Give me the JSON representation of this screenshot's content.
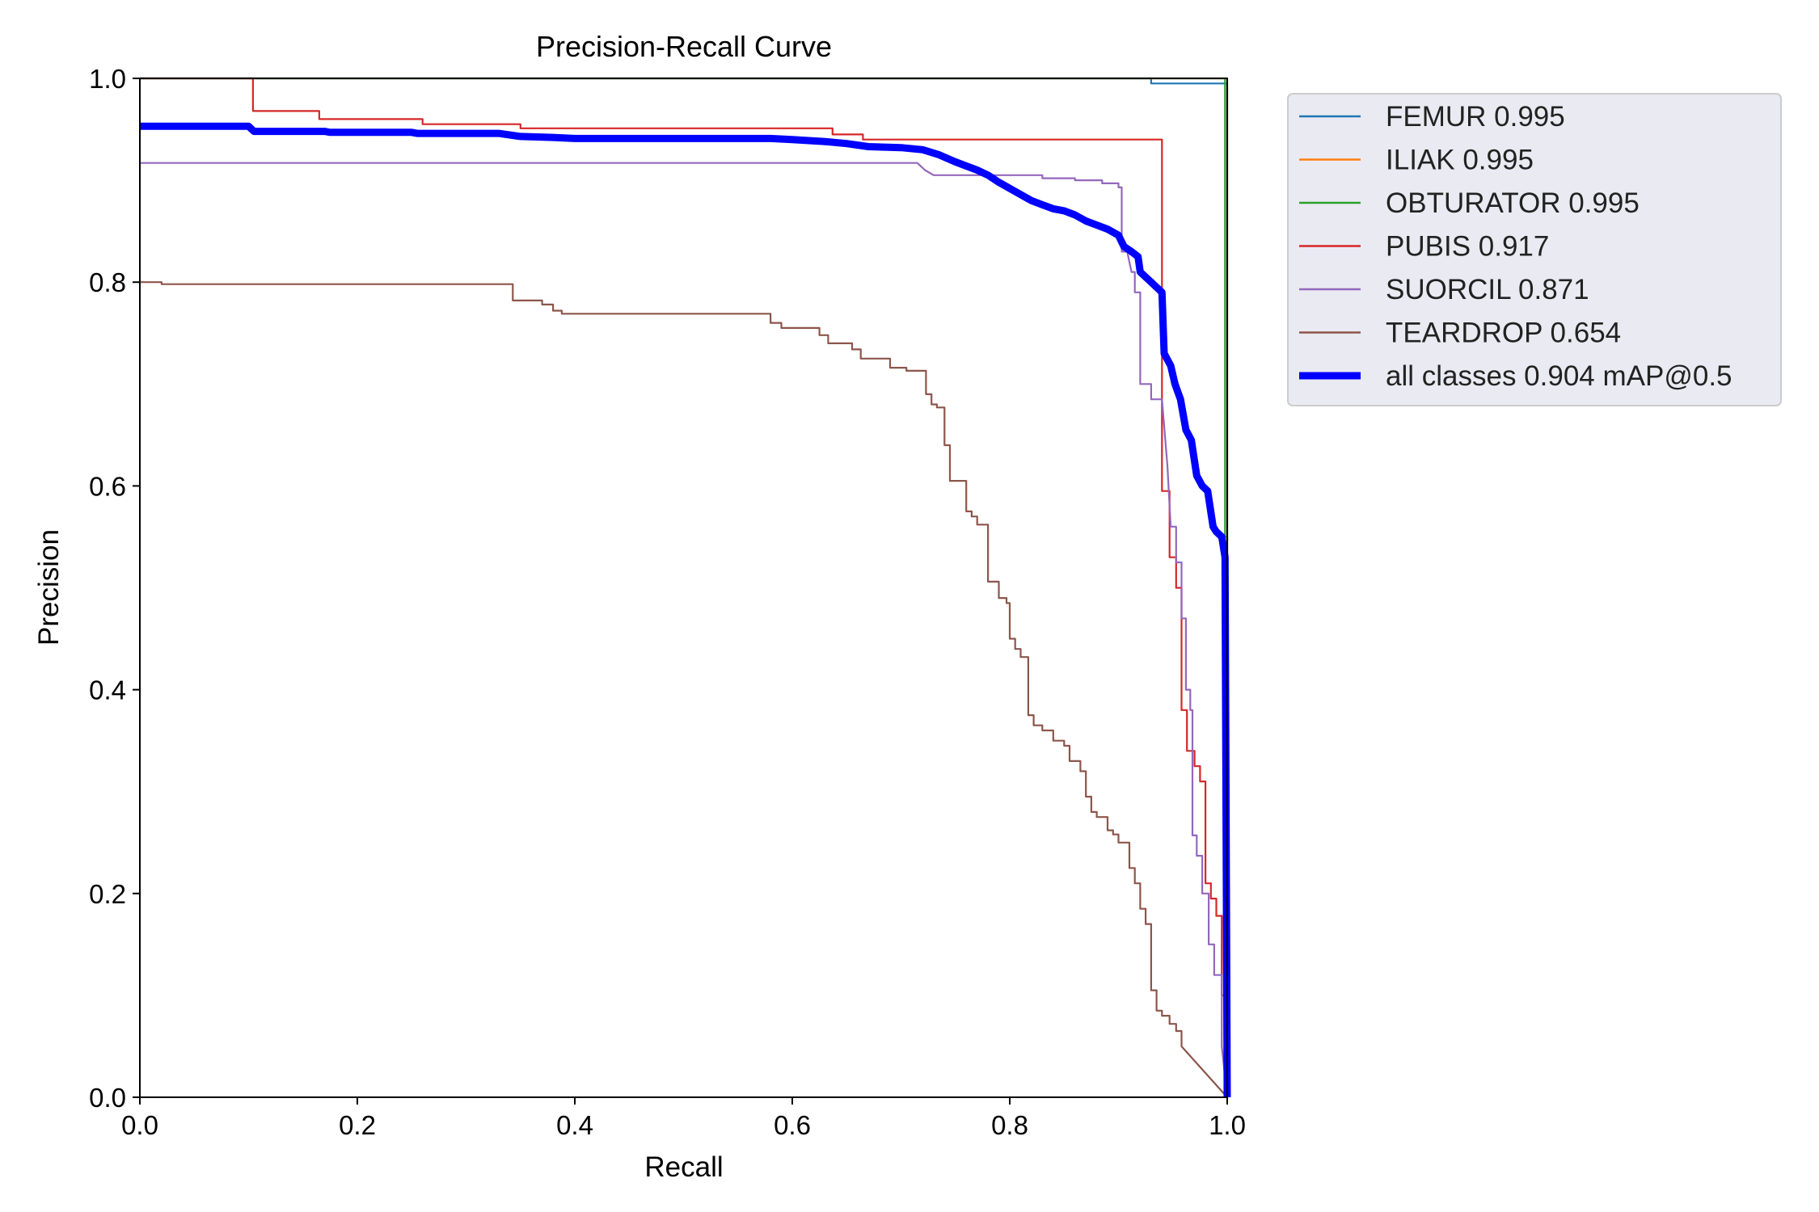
{
  "chart_data": {
    "type": "line",
    "title": "Precision-Recall Curve",
    "xlabel": "Recall",
    "ylabel": "Precision",
    "xlim": [
      0,
      1
    ],
    "ylim": [
      0,
      1
    ],
    "x_ticks": [
      "0.0",
      "0.2",
      "0.4",
      "0.6",
      "0.8",
      "1.0"
    ],
    "y_ticks": [
      "0.0",
      "0.2",
      "0.4",
      "0.6",
      "0.8",
      "1.0"
    ],
    "grid": false,
    "legend_position": "outside-top-right",
    "series": [
      {
        "name": "FEMUR 0.995",
        "color": "#1f77b4",
        "width": "thin",
        "points": [
          [
            0.0,
            1.0
          ],
          [
            0.93,
            1.0
          ],
          [
            0.93,
            0.995
          ],
          [
            1.0,
            0.995
          ],
          [
            1.0,
            0.0
          ]
        ]
      },
      {
        "name": "ILIAK 0.995",
        "color": "#ff7f0e",
        "width": "thin",
        "points": [
          [
            0.0,
            1.0
          ],
          [
            0.995,
            1.0
          ],
          [
            1.0,
            1.0
          ],
          [
            1.0,
            0.0
          ]
        ]
      },
      {
        "name": "OBTURATOR 0.995",
        "color": "#2ca02c",
        "width": "thin",
        "points": [
          [
            0.0,
            1.0
          ],
          [
            0.998,
            1.0
          ],
          [
            0.998,
            0.55
          ],
          [
            1.0,
            0.55
          ],
          [
            1.0,
            0.0
          ]
        ]
      },
      {
        "name": "PUBIS 0.917",
        "color": "#d62728",
        "width": "thin",
        "points": [
          [
            0.0,
            1.0
          ],
          [
            0.104,
            1.0
          ],
          [
            0.104,
            0.968
          ],
          [
            0.165,
            0.968
          ],
          [
            0.165,
            0.96
          ],
          [
            0.26,
            0.96
          ],
          [
            0.26,
            0.955
          ],
          [
            0.35,
            0.955
          ],
          [
            0.35,
            0.951
          ],
          [
            0.637,
            0.951
          ],
          [
            0.637,
            0.945
          ],
          [
            0.665,
            0.945
          ],
          [
            0.665,
            0.94
          ],
          [
            0.94,
            0.94
          ],
          [
            0.94,
            0.595
          ],
          [
            0.947,
            0.595
          ],
          [
            0.947,
            0.53
          ],
          [
            0.953,
            0.53
          ],
          [
            0.953,
            0.5
          ],
          [
            0.958,
            0.5
          ],
          [
            0.958,
            0.38
          ],
          [
            0.963,
            0.38
          ],
          [
            0.963,
            0.34
          ],
          [
            0.97,
            0.34
          ],
          [
            0.97,
            0.325
          ],
          [
            0.975,
            0.325
          ],
          [
            0.975,
            0.31
          ],
          [
            0.98,
            0.31
          ],
          [
            0.98,
            0.21
          ],
          [
            0.985,
            0.21
          ],
          [
            0.985,
            0.195
          ],
          [
            0.99,
            0.195
          ],
          [
            0.99,
            0.178
          ],
          [
            0.995,
            0.178
          ],
          [
            0.995,
            0.1
          ],
          [
            1.0,
            0.1
          ],
          [
            1.0,
            0.0
          ]
        ]
      },
      {
        "name": "SUORCIL 0.871",
        "color": "#9467bd",
        "width": "thin",
        "points": [
          [
            0.0,
            0.917
          ],
          [
            0.715,
            0.917
          ],
          [
            0.722,
            0.91
          ],
          [
            0.73,
            0.905
          ],
          [
            0.79,
            0.905
          ],
          [
            0.83,
            0.905
          ],
          [
            0.83,
            0.902
          ],
          [
            0.86,
            0.902
          ],
          [
            0.86,
            0.9
          ],
          [
            0.885,
            0.9
          ],
          [
            0.885,
            0.897
          ],
          [
            0.9,
            0.897
          ],
          [
            0.9,
            0.893
          ],
          [
            0.903,
            0.893
          ],
          [
            0.903,
            0.83
          ],
          [
            0.908,
            0.83
          ],
          [
            0.912,
            0.81
          ],
          [
            0.915,
            0.81
          ],
          [
            0.915,
            0.79
          ],
          [
            0.92,
            0.79
          ],
          [
            0.92,
            0.7
          ],
          [
            0.93,
            0.7
          ],
          [
            0.93,
            0.685
          ],
          [
            0.94,
            0.685
          ],
          [
            0.945,
            0.62
          ],
          [
            0.948,
            0.56
          ],
          [
            0.953,
            0.56
          ],
          [
            0.953,
            0.525
          ],
          [
            0.958,
            0.525
          ],
          [
            0.958,
            0.47
          ],
          [
            0.962,
            0.47
          ],
          [
            0.962,
            0.4
          ],
          [
            0.966,
            0.4
          ],
          [
            0.966,
            0.38
          ],
          [
            0.968,
            0.38
          ],
          [
            0.968,
            0.257
          ],
          [
            0.972,
            0.257
          ],
          [
            0.972,
            0.237
          ],
          [
            0.977,
            0.237
          ],
          [
            0.977,
            0.2
          ],
          [
            0.983,
            0.2
          ],
          [
            0.983,
            0.15
          ],
          [
            0.988,
            0.15
          ],
          [
            0.988,
            0.12
          ],
          [
            0.995,
            0.12
          ],
          [
            0.995,
            0.05
          ],
          [
            1.0,
            0.0
          ]
        ]
      },
      {
        "name": "TEARDROP 0.654",
        "color": "#8c564b",
        "width": "thin",
        "points": [
          [
            0.0,
            0.8
          ],
          [
            0.02,
            0.8
          ],
          [
            0.02,
            0.798
          ],
          [
            0.343,
            0.798
          ],
          [
            0.343,
            0.782
          ],
          [
            0.37,
            0.782
          ],
          [
            0.37,
            0.778
          ],
          [
            0.38,
            0.778
          ],
          [
            0.38,
            0.772
          ],
          [
            0.388,
            0.772
          ],
          [
            0.388,
            0.769
          ],
          [
            0.58,
            0.769
          ],
          [
            0.58,
            0.76
          ],
          [
            0.59,
            0.76
          ],
          [
            0.59,
            0.755
          ],
          [
            0.625,
            0.755
          ],
          [
            0.625,
            0.748
          ],
          [
            0.633,
            0.748
          ],
          [
            0.633,
            0.74
          ],
          [
            0.655,
            0.74
          ],
          [
            0.655,
            0.734
          ],
          [
            0.663,
            0.734
          ],
          [
            0.663,
            0.725
          ],
          [
            0.69,
            0.725
          ],
          [
            0.69,
            0.716
          ],
          [
            0.705,
            0.716
          ],
          [
            0.705,
            0.713
          ],
          [
            0.723,
            0.713
          ],
          [
            0.723,
            0.69
          ],
          [
            0.728,
            0.69
          ],
          [
            0.728,
            0.68
          ],
          [
            0.733,
            0.68
          ],
          [
            0.733,
            0.677
          ],
          [
            0.74,
            0.677
          ],
          [
            0.74,
            0.64
          ],
          [
            0.745,
            0.64
          ],
          [
            0.745,
            0.605
          ],
          [
            0.76,
            0.605
          ],
          [
            0.76,
            0.575
          ],
          [
            0.765,
            0.575
          ],
          [
            0.765,
            0.57
          ],
          [
            0.77,
            0.57
          ],
          [
            0.77,
            0.562
          ],
          [
            0.78,
            0.562
          ],
          [
            0.78,
            0.506
          ],
          [
            0.79,
            0.506
          ],
          [
            0.79,
            0.49
          ],
          [
            0.797,
            0.49
          ],
          [
            0.797,
            0.485
          ],
          [
            0.8,
            0.485
          ],
          [
            0.8,
            0.45
          ],
          [
            0.805,
            0.45
          ],
          [
            0.805,
            0.44
          ],
          [
            0.81,
            0.44
          ],
          [
            0.81,
            0.432
          ],
          [
            0.817,
            0.432
          ],
          [
            0.817,
            0.375
          ],
          [
            0.822,
            0.375
          ],
          [
            0.822,
            0.365
          ],
          [
            0.83,
            0.365
          ],
          [
            0.83,
            0.36
          ],
          [
            0.84,
            0.36
          ],
          [
            0.84,
            0.35
          ],
          [
            0.85,
            0.35
          ],
          [
            0.85,
            0.345
          ],
          [
            0.855,
            0.345
          ],
          [
            0.855,
            0.33
          ],
          [
            0.865,
            0.33
          ],
          [
            0.865,
            0.32
          ],
          [
            0.87,
            0.32
          ],
          [
            0.87,
            0.295
          ],
          [
            0.875,
            0.295
          ],
          [
            0.875,
            0.28
          ],
          [
            0.88,
            0.28
          ],
          [
            0.88,
            0.275
          ],
          [
            0.89,
            0.275
          ],
          [
            0.89,
            0.262
          ],
          [
            0.895,
            0.262
          ],
          [
            0.895,
            0.258
          ],
          [
            0.9,
            0.258
          ],
          [
            0.9,
            0.25
          ],
          [
            0.91,
            0.25
          ],
          [
            0.91,
            0.225
          ],
          [
            0.915,
            0.225
          ],
          [
            0.915,
            0.21
          ],
          [
            0.92,
            0.21
          ],
          [
            0.92,
            0.185
          ],
          [
            0.925,
            0.185
          ],
          [
            0.925,
            0.17
          ],
          [
            0.93,
            0.17
          ],
          [
            0.93,
            0.105
          ],
          [
            0.935,
            0.105
          ],
          [
            0.935,
            0.085
          ],
          [
            0.94,
            0.085
          ],
          [
            0.94,
            0.08
          ],
          [
            0.947,
            0.08
          ],
          [
            0.947,
            0.072
          ],
          [
            0.953,
            0.072
          ],
          [
            0.953,
            0.065
          ],
          [
            0.958,
            0.065
          ],
          [
            0.958,
            0.05
          ],
          [
            1.0,
            0.0
          ]
        ]
      },
      {
        "name": "all classes 0.904 mAP@0.5",
        "color": "#0000ff",
        "width": "thick",
        "points": [
          [
            0.0,
            0.953
          ],
          [
            0.1,
            0.953
          ],
          [
            0.105,
            0.948
          ],
          [
            0.17,
            0.948
          ],
          [
            0.175,
            0.947
          ],
          [
            0.25,
            0.947
          ],
          [
            0.255,
            0.946
          ],
          [
            0.33,
            0.946
          ],
          [
            0.35,
            0.943
          ],
          [
            0.38,
            0.942
          ],
          [
            0.4,
            0.941
          ],
          [
            0.58,
            0.941
          ],
          [
            0.6,
            0.94
          ],
          [
            0.63,
            0.938
          ],
          [
            0.65,
            0.936
          ],
          [
            0.67,
            0.933
          ],
          [
            0.7,
            0.932
          ],
          [
            0.72,
            0.93
          ],
          [
            0.735,
            0.925
          ],
          [
            0.75,
            0.918
          ],
          [
            0.77,
            0.91
          ],
          [
            0.78,
            0.905
          ],
          [
            0.79,
            0.898
          ],
          [
            0.8,
            0.892
          ],
          [
            0.81,
            0.886
          ],
          [
            0.82,
            0.88
          ],
          [
            0.83,
            0.876
          ],
          [
            0.84,
            0.872
          ],
          [
            0.85,
            0.87
          ],
          [
            0.86,
            0.866
          ],
          [
            0.87,
            0.86
          ],
          [
            0.88,
            0.856
          ],
          [
            0.89,
            0.852
          ],
          [
            0.9,
            0.846
          ],
          [
            0.905,
            0.835
          ],
          [
            0.912,
            0.83
          ],
          [
            0.918,
            0.825
          ],
          [
            0.92,
            0.81
          ],
          [
            0.925,
            0.805
          ],
          [
            0.93,
            0.8
          ],
          [
            0.935,
            0.795
          ],
          [
            0.94,
            0.79
          ],
          [
            0.942,
            0.73
          ],
          [
            0.948,
            0.718
          ],
          [
            0.952,
            0.7
          ],
          [
            0.957,
            0.685
          ],
          [
            0.962,
            0.655
          ],
          [
            0.967,
            0.645
          ],
          [
            0.972,
            0.61
          ],
          [
            0.977,
            0.6
          ],
          [
            0.982,
            0.595
          ],
          [
            0.987,
            0.56
          ],
          [
            0.99,
            0.555
          ],
          [
            0.995,
            0.55
          ],
          [
            0.998,
            0.53
          ],
          [
            1.0,
            0.0
          ]
        ]
      }
    ]
  }
}
